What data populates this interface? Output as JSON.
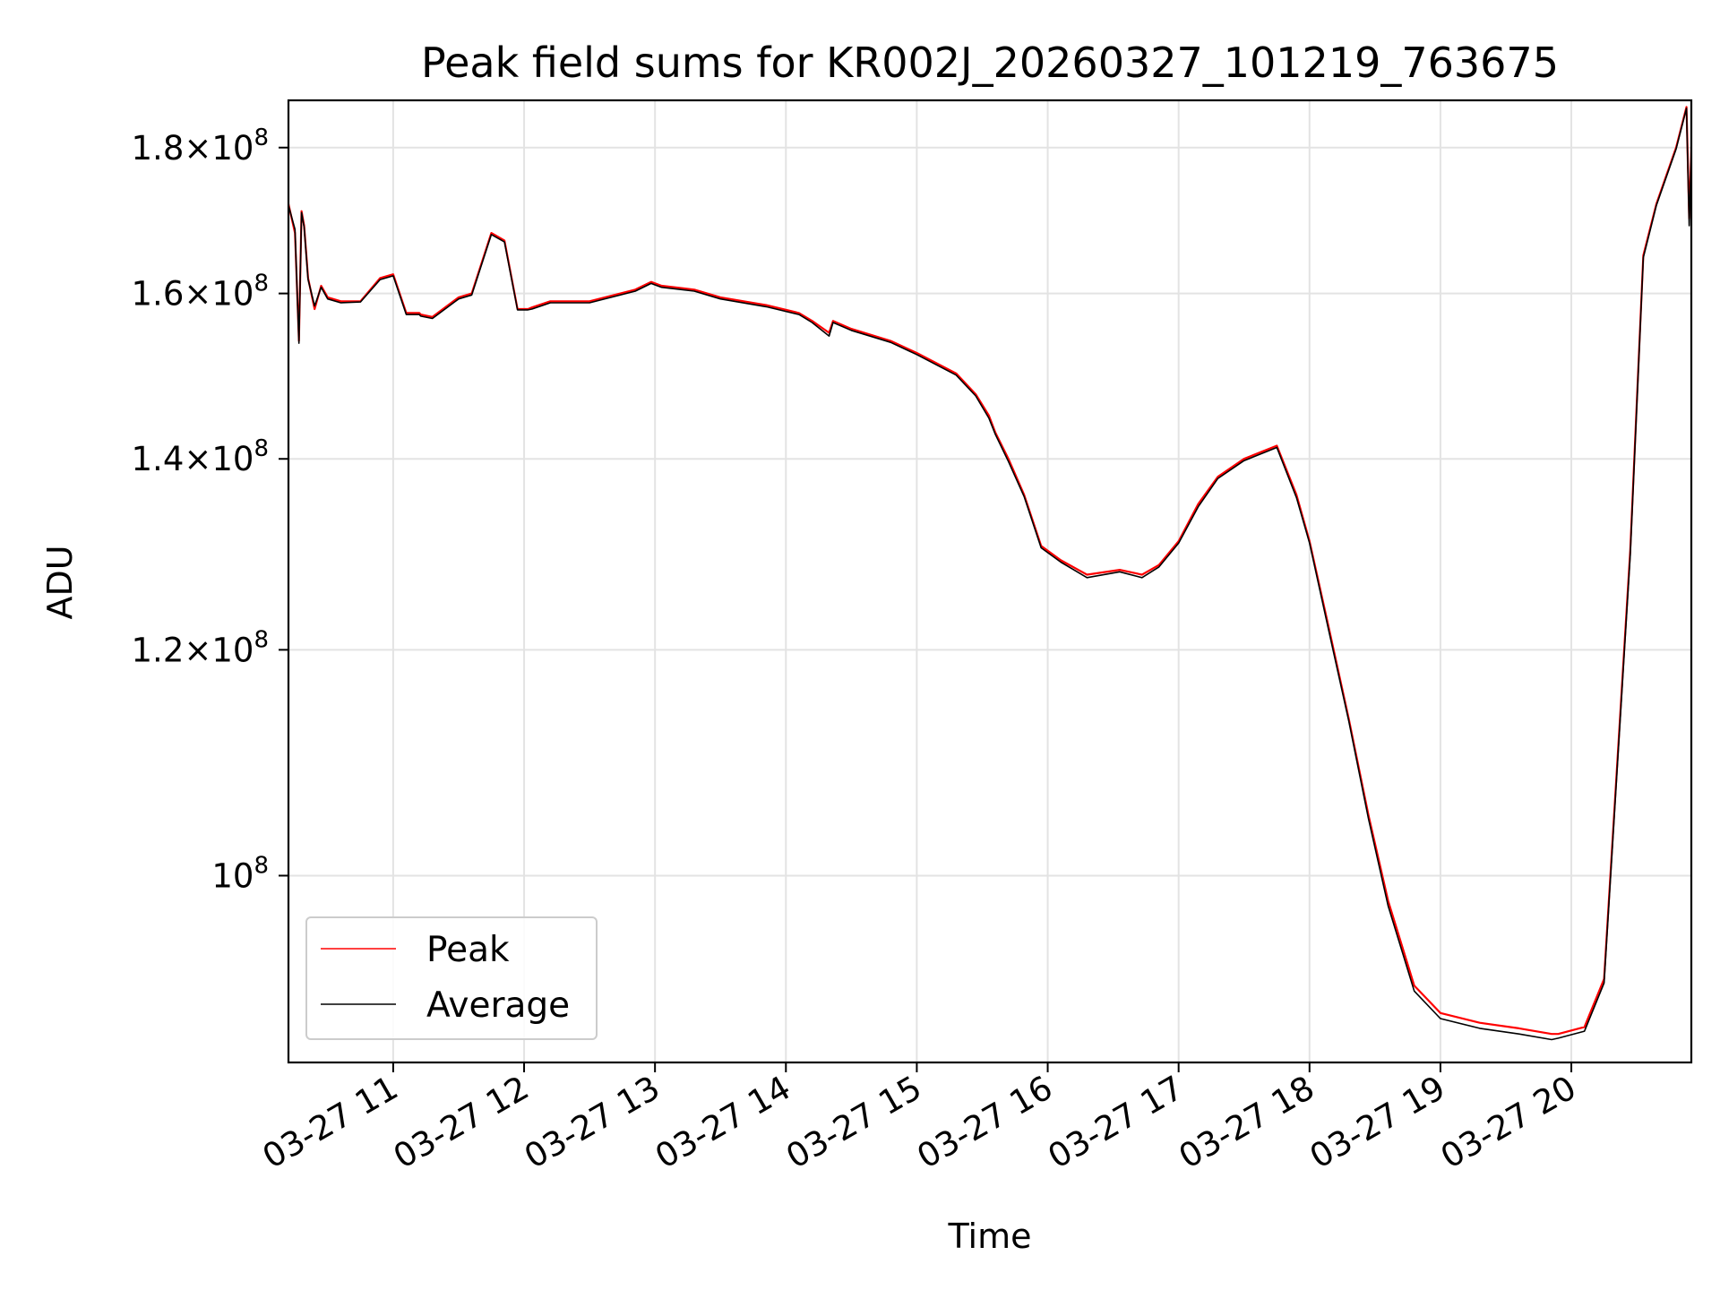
{
  "chart_data": {
    "type": "line",
    "title": "Peak field sums for KR002J_20260327_101219_763675",
    "xlabel": "Time",
    "ylabel": "ADU",
    "yscale": "log",
    "xlim": [
      "03-27 10:12",
      "03-27 20:55"
    ],
    "ylim": [
      86000000,
      187000000
    ],
    "grid": true,
    "legend": "lower-left",
    "x_ticks": [
      "03-27 11",
      "03-27 12",
      "03-27 13",
      "03-27 14",
      "03-27 15",
      "03-27 16",
      "03-27 17",
      "03-27 18",
      "03-27 19",
      "03-27 20"
    ],
    "y_ticks": [
      {
        "value": 180000000,
        "mantissa": "1.8",
        "label_suffix": "10",
        "exp": "8"
      },
      {
        "value": 160000000,
        "mantissa": "1.6",
        "label_suffix": "10",
        "exp": "8"
      },
      {
        "value": 140000000,
        "mantissa": "1.4",
        "label_suffix": "10",
        "exp": "8"
      },
      {
        "value": 120000000,
        "mantissa": "1.2",
        "label_suffix": "10",
        "exp": "8"
      },
      {
        "value": 100000000,
        "mantissa": "",
        "label_suffix": "10",
        "exp": "8"
      }
    ],
    "x_unit": "hours",
    "x": [
      10.2,
      10.25,
      10.28,
      10.3,
      10.32,
      10.35,
      10.4,
      10.45,
      10.5,
      10.6,
      10.75,
      10.9,
      11.0,
      11.1,
      11.2,
      11.21,
      11.3,
      11.5,
      11.6,
      11.75,
      11.85,
      11.95,
      12.03,
      12.06,
      12.2,
      12.5,
      12.85,
      12.97,
      13.05,
      13.3,
      13.5,
      13.85,
      14.1,
      14.2,
      14.33,
      14.36,
      14.5,
      14.8,
      15.0,
      15.3,
      15.45,
      15.55,
      15.6,
      15.7,
      15.82,
      15.95,
      16.1,
      16.3,
      16.55,
      16.72,
      16.85,
      17.0,
      17.15,
      17.3,
      17.5,
      17.75,
      17.9,
      18.0,
      18.15,
      18.3,
      18.45,
      18.6,
      18.8,
      19.0,
      19.3,
      19.6,
      19.85,
      19.9,
      20.1,
      20.25,
      20.45,
      20.55,
      20.65,
      20.8,
      20.88,
      20.9,
      20.92
    ],
    "series": [
      {
        "name": "Peak",
        "color": "#ff0000",
        "values": [
          172000000,
          168000000,
          154000000,
          171000000,
          169000000,
          162000000,
          158000000,
          161000000,
          159500000,
          159000000,
          159000000,
          162000000,
          162500000,
          157500000,
          157500000,
          157300000,
          157000000,
          159500000,
          160000000,
          168000000,
          167000000,
          158000000,
          158000000,
          158200000,
          159000000,
          159000000,
          160500000,
          161500000,
          161000000,
          160500000,
          159500000,
          158500000,
          157500000,
          156500000,
          155000000,
          156500000,
          155500000,
          154000000,
          152500000,
          150000000,
          147500000,
          145000000,
          143000000,
          140000000,
          136000000,
          130500000,
          129000000,
          127500000,
          128000000,
          127500000,
          128500000,
          131000000,
          135000000,
          138000000,
          140000000,
          141500000,
          136000000,
          131000000,
          122000000,
          113500000,
          105000000,
          98000000,
          91500000,
          89500000,
          88800000,
          88400000,
          88000000,
          88000000,
          88500000,
          92000000,
          130000000,
          165000000,
          172000000,
          180000000,
          186000000,
          170000000,
          182000000
        ]
      },
      {
        "name": "Average",
        "color": "#000000",
        "values": [
          171800000,
          168500000,
          153700000,
          170800000,
          168800000,
          161800000,
          158400000,
          160800000,
          159300000,
          158800000,
          158900000,
          161800000,
          162300000,
          157300000,
          157300000,
          157100000,
          156800000,
          159300000,
          159800000,
          167800000,
          166800000,
          157900000,
          157900000,
          158000000,
          158800000,
          158800000,
          160300000,
          161300000,
          160800000,
          160300000,
          159300000,
          158300000,
          157300000,
          156300000,
          154600000,
          156300000,
          155300000,
          153800000,
          152300000,
          149800000,
          147300000,
          144700000,
          142800000,
          139700000,
          135800000,
          130300000,
          128800000,
          127200000,
          127800000,
          127200000,
          128300000,
          130800000,
          134700000,
          137800000,
          139800000,
          141300000,
          135700000,
          130800000,
          121700000,
          113300000,
          104700000,
          97600000,
          91100000,
          89100000,
          88400000,
          88000000,
          87600000,
          87700000,
          88200000,
          91700000,
          129500000,
          164700000,
          171800000,
          179800000,
          185800000,
          169000000,
          181800000
        ]
      }
    ]
  }
}
